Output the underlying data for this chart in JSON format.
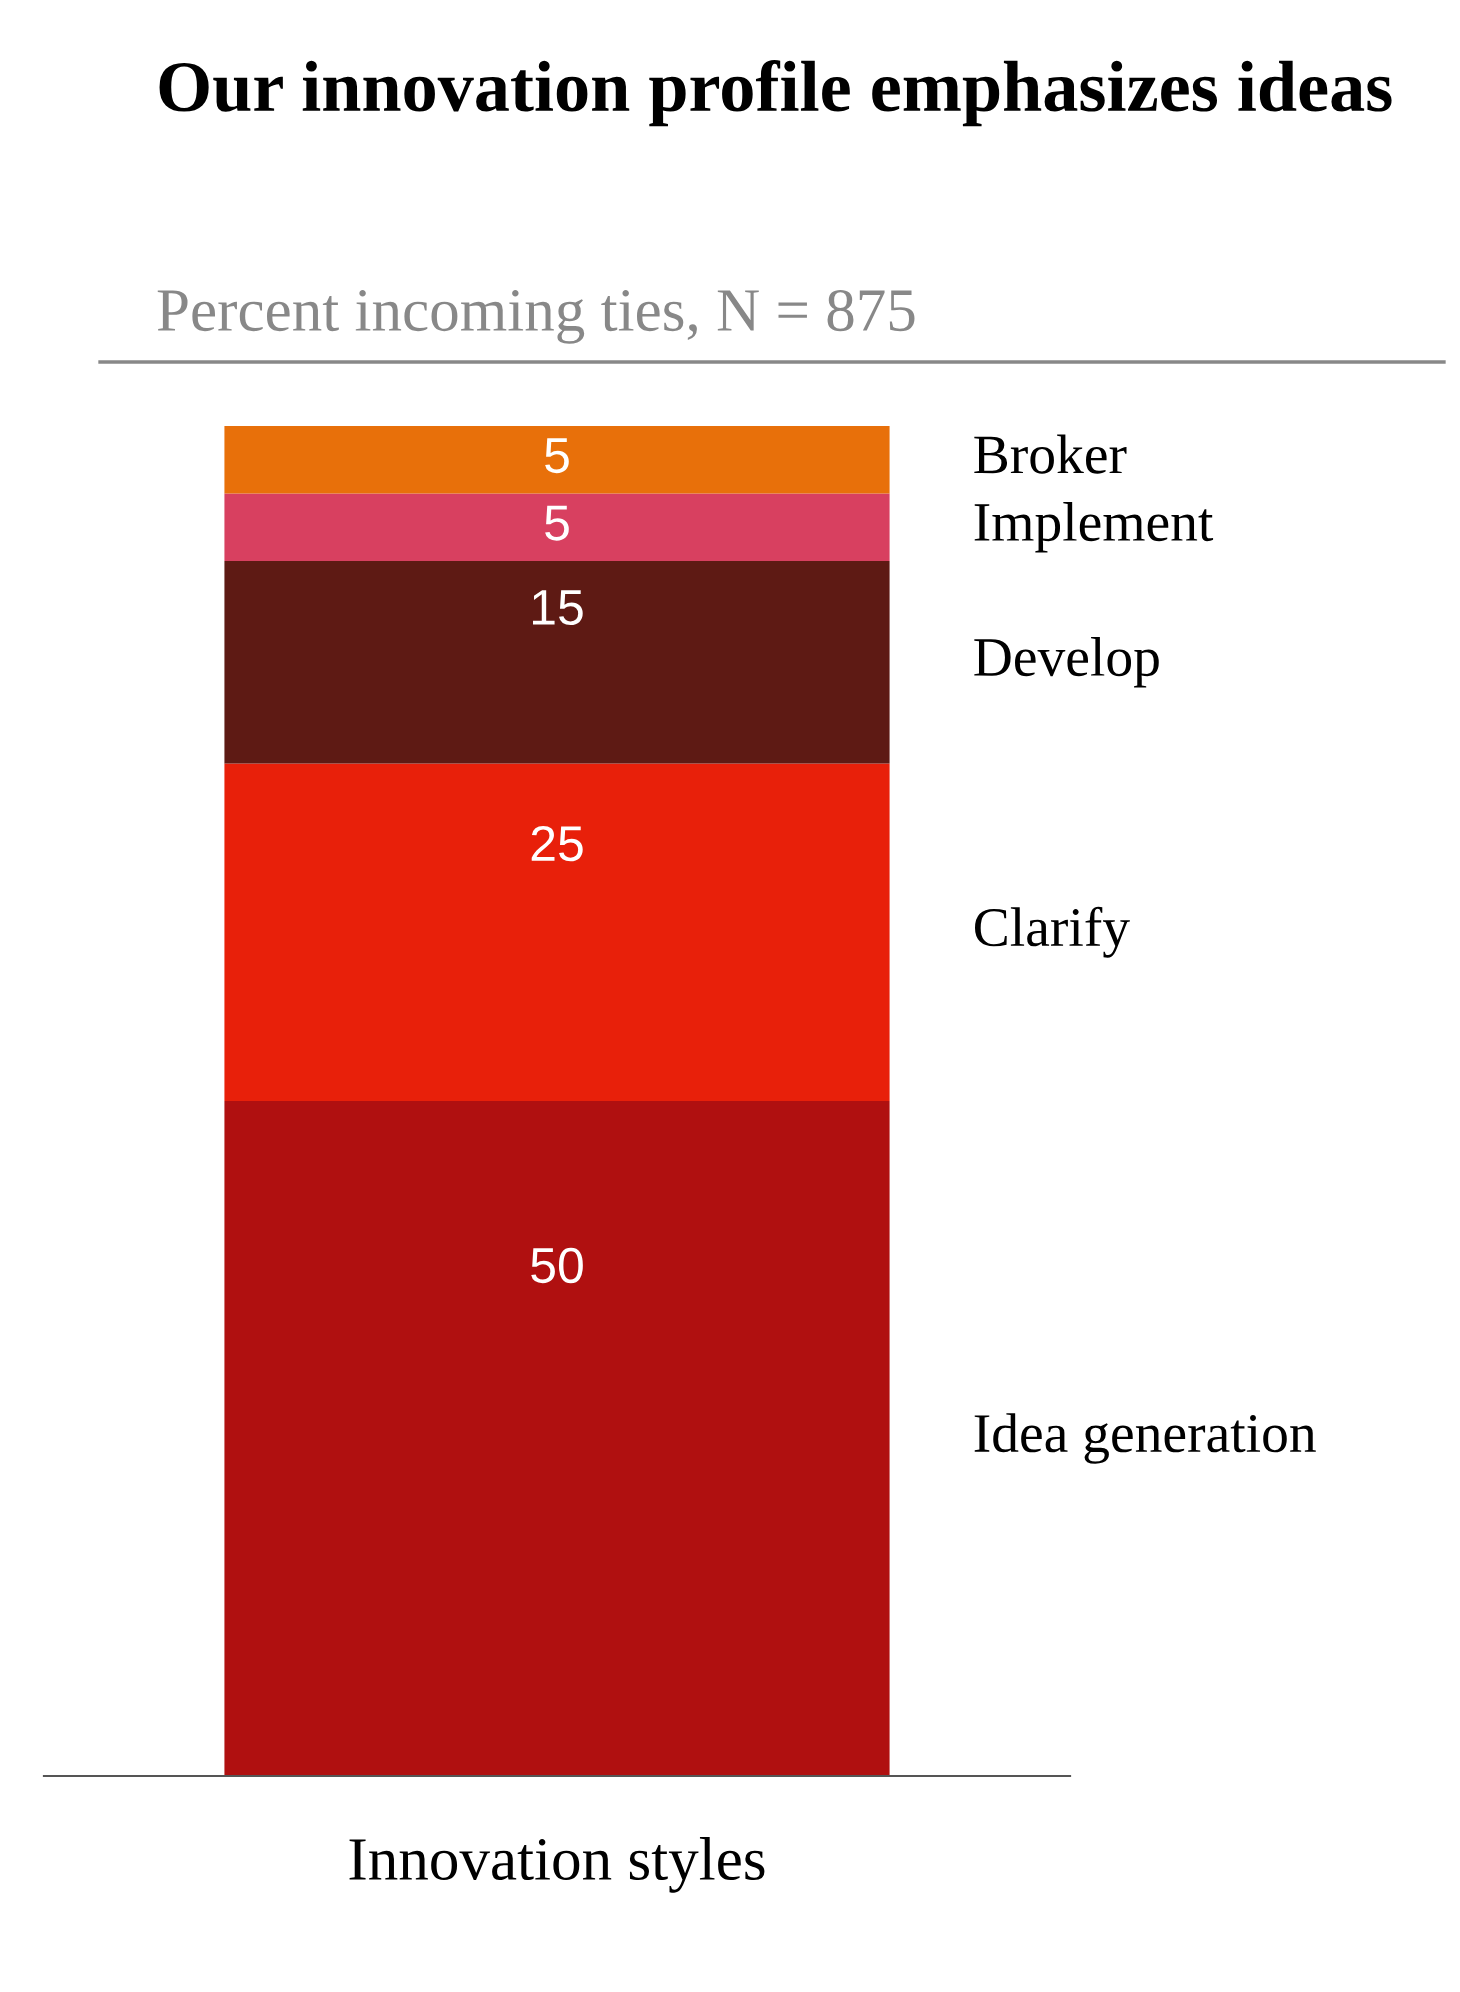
{
  "chart_data": {
    "type": "bar",
    "stacked": true,
    "title": "Our innovation profile emphasizes ideas",
    "subtitle": "Percent incoming ties, N = 875",
    "xlabel": "Innovation styles",
    "categories": [
      null
    ],
    "series": [
      {
        "name": "Idea generation",
        "color": "#b01010",
        "values": [
          50
        ]
      },
      {
        "name": "Clarify",
        "color": "#e8200a",
        "values": [
          25
        ]
      },
      {
        "name": "Develop",
        "color": "#5e1a14",
        "values": [
          15
        ]
      },
      {
        "name": "Implement",
        "color": "#d84060",
        "values": [
          5
        ]
      },
      {
        "name": "Broker",
        "color": "#e8700a",
        "values": [
          5
        ]
      }
    ],
    "data_labels": true,
    "legend": false,
    "grid": false
  }
}
